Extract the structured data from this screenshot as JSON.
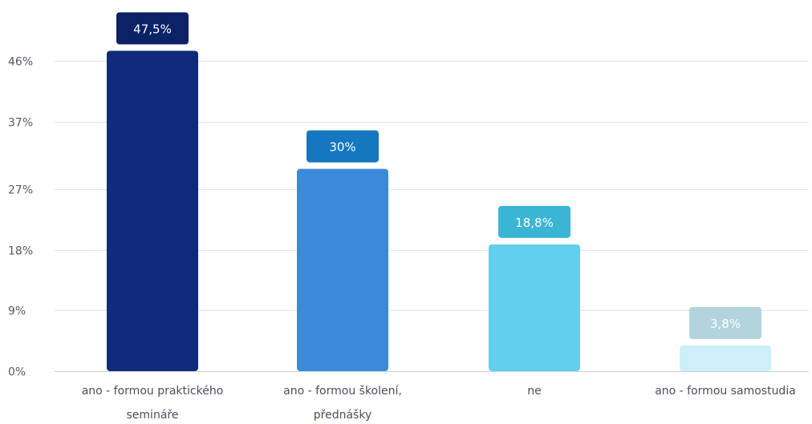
{
  "chart_data": {
    "type": "bar",
    "categories": [
      [
        "ano - formou praktického",
        "semináře"
      ],
      [
        "ano - formou školení,",
        "přednášky"
      ],
      [
        "ne"
      ],
      [
        "ano - formou samostudia"
      ]
    ],
    "values": [
      47.5,
      30,
      18.8,
      3.8
    ],
    "value_labels": [
      "47,5%",
      "30%",
      "18,8%",
      "3,8%"
    ],
    "bar_colors": [
      "#122a7b",
      "#3b8ad8",
      "#63cfee",
      "#cdeff9"
    ],
    "label_bg_colors": [
      "#0c2266",
      "#1577bd",
      "#3bb5d4",
      "#b3d3dd"
    ],
    "y_ticks": [
      0,
      9,
      18,
      27,
      37,
      46
    ],
    "y_tick_labels": [
      "0%",
      "9%",
      "18%",
      "27%",
      "37%",
      "46%"
    ],
    "ylim": [
      0,
      46
    ],
    "grid": true,
    "legend": "none",
    "title": "",
    "xlabel": "",
    "ylabel": ""
  }
}
